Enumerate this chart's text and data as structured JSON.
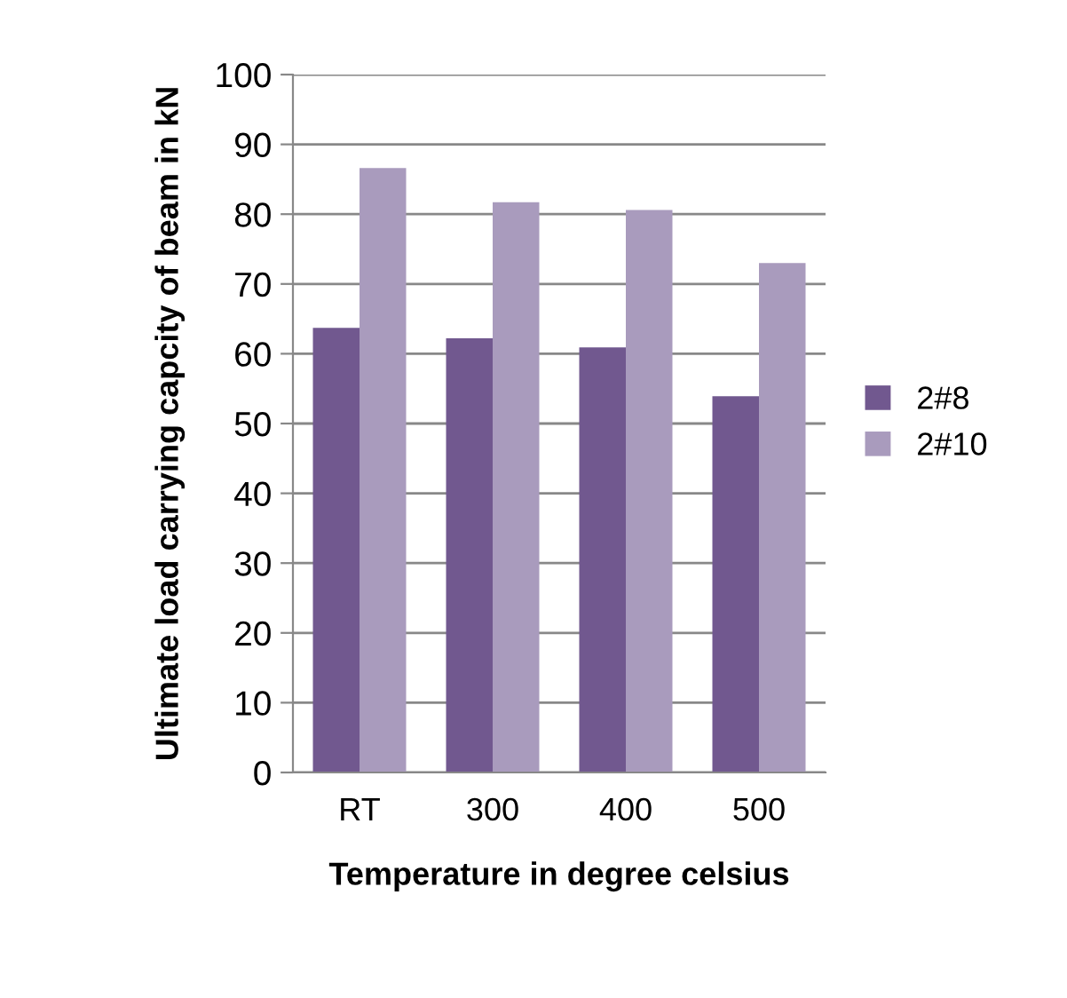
{
  "chart_data": {
    "type": "bar",
    "xlabel": "Temperature in degree celsius",
    "ylabel": "Ultimate load carrying capcity of beam in kN",
    "categories": [
      "RT",
      "300",
      "400",
      "500"
    ],
    "series": [
      {
        "name": "2#8",
        "color": "#71588f",
        "values": [
          63.7,
          62.2,
          60.9,
          53.9
        ]
      },
      {
        "name": "2#10",
        "color": "#a99bbd",
        "values": [
          86.6,
          81.7,
          80.6,
          73.0
        ]
      }
    ],
    "ylim": [
      0,
      100
    ],
    "yticks": [
      0,
      10,
      20,
      30,
      40,
      50,
      60,
      70,
      80,
      90,
      100
    ],
    "grid": "y",
    "legend": "right"
  }
}
